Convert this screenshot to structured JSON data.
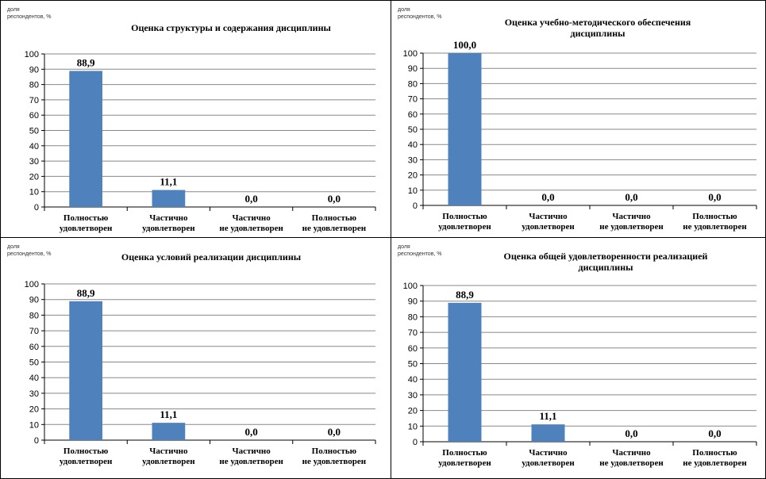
{
  "colors": {
    "bar": "#4F81BD",
    "grid": "#888888",
    "axis": "#000000"
  },
  "y_unit_line1": "доля",
  "y_unit_line2": "респондентов, %",
  "chart_data": [
    {
      "type": "bar",
      "title_lines": [
        "Оценка структуры и содержания дисциплины"
      ],
      "categories": [
        [
          "Полностью",
          "удовлетворен"
        ],
        [
          "Частично",
          "удовлетворен"
        ],
        [
          "Частично",
          "не удовлетворен"
        ],
        [
          "Полностью",
          "не удовлетворен"
        ]
      ],
      "values": [
        88.9,
        11.1,
        0.0,
        0.0
      ],
      "value_labels": [
        "88,9",
        "11,1",
        "0,0",
        "0,0"
      ],
      "ylim": [
        0,
        100
      ],
      "yticks": [
        0,
        10,
        20,
        30,
        40,
        50,
        60,
        70,
        80,
        90,
        100
      ],
      "grid": true
    },
    {
      "type": "bar",
      "title_lines": [
        "Оценка учебно-методического обеспечения",
        "дисциплины"
      ],
      "categories": [
        [
          "Полностью",
          "удовлетворен"
        ],
        [
          "Частично",
          "удовлетворен"
        ],
        [
          "Частично",
          "не удовлетворен"
        ],
        [
          "Полностью",
          "не удовлетворен"
        ]
      ],
      "values": [
        100.0,
        0.0,
        0.0,
        0.0
      ],
      "value_labels": [
        "100,0",
        "0,0",
        "0,0",
        "0,0"
      ],
      "ylim": [
        0,
        100
      ],
      "yticks": [
        0,
        10,
        20,
        30,
        40,
        50,
        60,
        70,
        80,
        90,
        100
      ],
      "grid": true
    },
    {
      "type": "bar",
      "title_lines": [
        "Оценка условий реализации дисциплины"
      ],
      "categories": [
        [
          "Полностью",
          "удовлетворен"
        ],
        [
          "Частично",
          "удовлетворен"
        ],
        [
          "Частично",
          "не удовлетворен"
        ],
        [
          "Полностью",
          "не удовлетворен"
        ]
      ],
      "values": [
        88.9,
        11.1,
        0.0,
        0.0
      ],
      "value_labels": [
        "88,9",
        "11,1",
        "0,0",
        "0,0"
      ],
      "ylim": [
        0,
        100
      ],
      "yticks": [
        0,
        10,
        20,
        30,
        40,
        50,
        60,
        70,
        80,
        90,
        100
      ],
      "grid": true
    },
    {
      "type": "bar",
      "title_lines": [
        "Оценка общей удовлетворенности реализацией",
        "дисциплины"
      ],
      "categories": [
        [
          "Полностью",
          "удовлетворен"
        ],
        [
          "Частично",
          "удовлетворен"
        ],
        [
          "Частично",
          "не удовлетворен"
        ],
        [
          "Полностью",
          "не удовлетворен"
        ]
      ],
      "values": [
        88.9,
        11.1,
        0.0,
        0.0
      ],
      "value_labels": [
        "88,9",
        "11,1",
        "0,0",
        "0,0"
      ],
      "ylim": [
        0,
        100
      ],
      "yticks": [
        0,
        10,
        20,
        30,
        40,
        50,
        60,
        70,
        80,
        90,
        100
      ],
      "grid": true
    }
  ]
}
